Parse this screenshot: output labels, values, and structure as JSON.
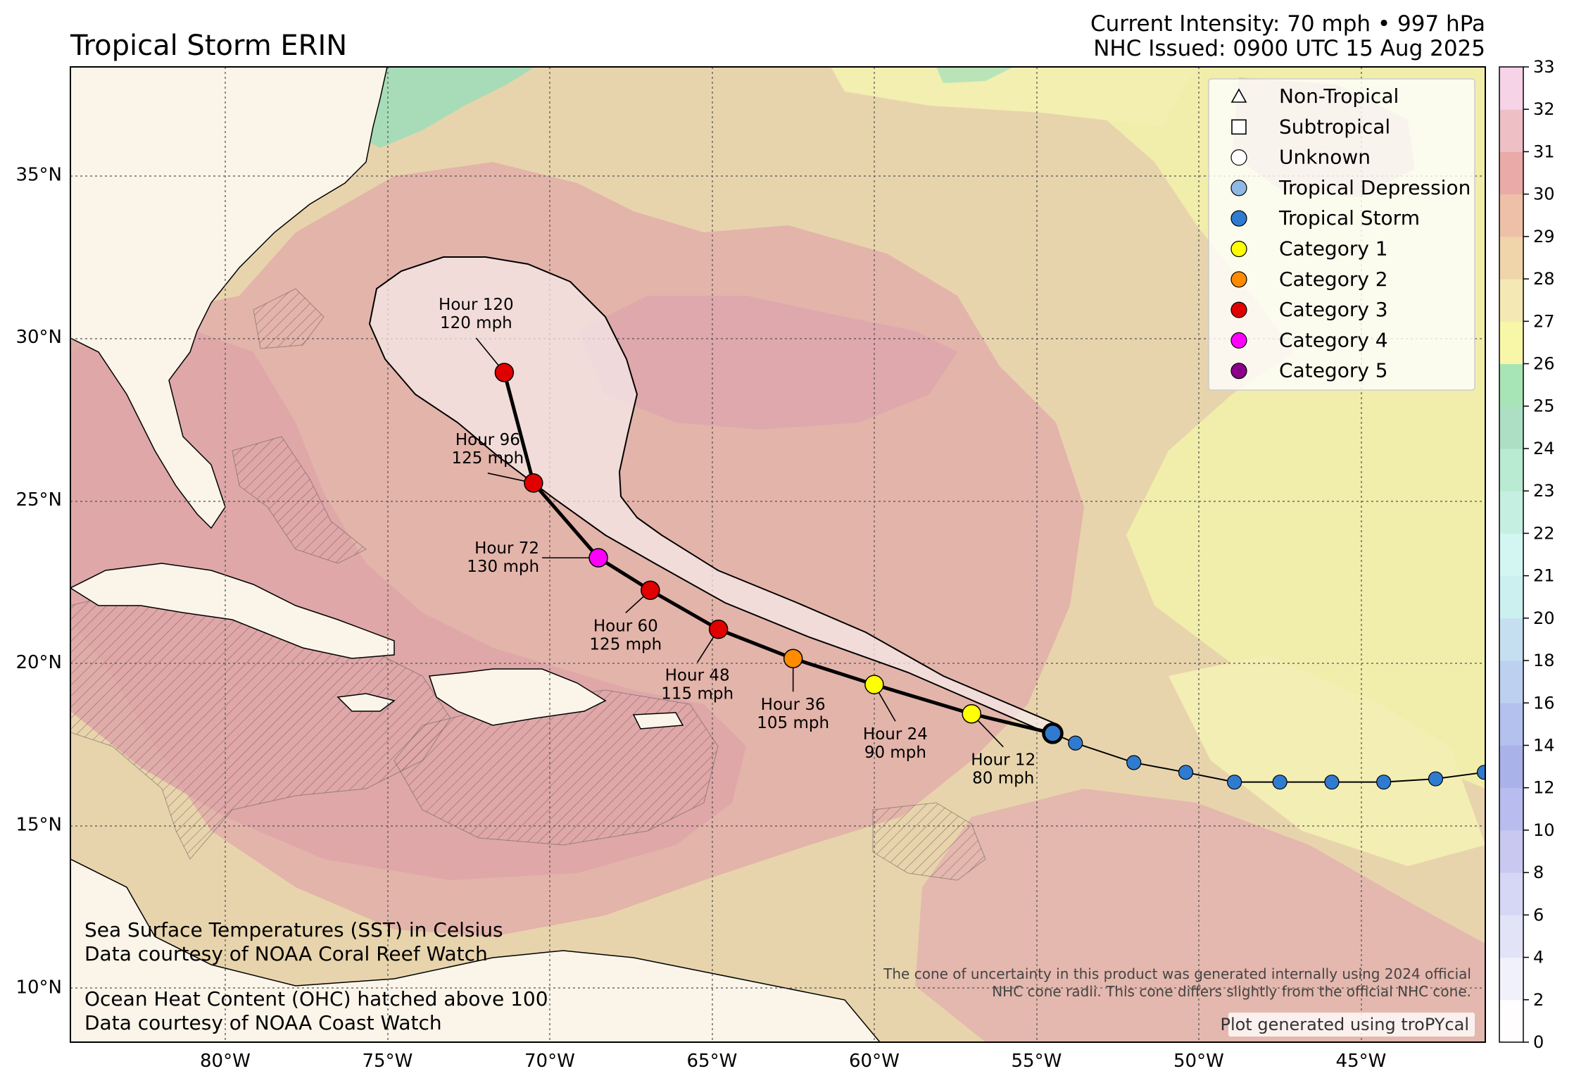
{
  "title": "Tropical Storm ERIN",
  "intensity": "Current Intensity: 70 mph • 997 hPa",
  "issued": "NHC Issued: 0900 UTC 15 Aug 2025",
  "lat_labels": [
    {
      "deg": 35,
      "text": "35°N"
    },
    {
      "deg": 30,
      "text": "30°N"
    },
    {
      "deg": 25,
      "text": "25°N"
    },
    {
      "deg": 20,
      "text": "20°N"
    },
    {
      "deg": 15,
      "text": "15°N"
    },
    {
      "deg": 10,
      "text": "10°N"
    }
  ],
  "lon_labels": [
    {
      "deg": -80,
      "text": "80°W"
    },
    {
      "deg": -75,
      "text": "75°W"
    },
    {
      "deg": -70,
      "text": "70°W"
    },
    {
      "deg": -65,
      "text": "65°W"
    },
    {
      "deg": -60,
      "text": "60°W"
    },
    {
      "deg": -55,
      "text": "55°W"
    },
    {
      "deg": -50,
      "text": "50°W"
    },
    {
      "deg": -45,
      "text": "45°W"
    }
  ],
  "colorbar": {
    "ticks": [
      "0",
      "2",
      "4",
      "6",
      "8",
      "10",
      "12",
      "14",
      "16",
      "18",
      "20",
      "21",
      "22",
      "23",
      "24",
      "25",
      "26",
      "27",
      "28",
      "29",
      "30",
      "31",
      "32",
      "33"
    ],
    "colors": [
      "#fffdfd",
      "#f1f1fb",
      "#e3e3f8",
      "#d6d6f5",
      "#c8c8f1",
      "#b8bcee",
      "#aab2ea",
      "#b4c0ee",
      "#bdd0f0",
      "#c6dff0",
      "#cceff0",
      "#d3f6f2",
      "#c5efe0",
      "#b9ead2",
      "#addfc4",
      "#a8e5b6",
      "#f8f7a8",
      "#f4e8b4",
      "#f0d5aa",
      "#eec0a8",
      "#e9aaa8",
      "#efbfc6",
      "#f7d3e8"
    ]
  },
  "legend": [
    {
      "symbol": "triangle",
      "color": "#ffffff",
      "label": "Non-Tropical"
    },
    {
      "symbol": "square",
      "color": "#ffffff",
      "label": "Subtropical"
    },
    {
      "symbol": "circle",
      "color": "#ffffff",
      "label": "Unknown"
    },
    {
      "symbol": "circle",
      "color": "#8fb9e4",
      "label": "Tropical Depression"
    },
    {
      "symbol": "circle",
      "color": "#2f7bd0",
      "label": "Tropical Storm"
    },
    {
      "symbol": "circle",
      "color": "#ffff00",
      "label": "Category 1"
    },
    {
      "symbol": "circle",
      "color": "#ff8c00",
      "label": "Category 2"
    },
    {
      "symbol": "circle",
      "color": "#e00000",
      "label": "Category 3"
    },
    {
      "symbol": "circle",
      "color": "#ff00ff",
      "label": "Category 4"
    },
    {
      "symbol": "circle",
      "color": "#8b008b",
      "label": "Category 5"
    }
  ],
  "past_track": [
    {
      "lon": -41.2,
      "lat": 16.6
    },
    {
      "lon": -42.7,
      "lat": 16.4
    },
    {
      "lon": -44.3,
      "lat": 16.3
    },
    {
      "lon": -45.9,
      "lat": 16.3
    },
    {
      "lon": -47.5,
      "lat": 16.3
    },
    {
      "lon": -48.9,
      "lat": 16.3
    },
    {
      "lon": -50.4,
      "lat": 16.6
    },
    {
      "lon": -52.0,
      "lat": 16.9
    },
    {
      "lon": -53.8,
      "lat": 17.5
    }
  ],
  "current_position": {
    "lon": -54.5,
    "lat": 17.8,
    "category": "Tropical Storm"
  },
  "forecast": [
    {
      "hour": "Hour 12",
      "wind": "80 mph",
      "lon": -57.0,
      "lat": 18.4,
      "category": "Category 1"
    },
    {
      "hour": "Hour 24",
      "wind": "90 mph",
      "lon": -60.0,
      "lat": 19.3,
      "category": "Category 1"
    },
    {
      "hour": "Hour 36",
      "wind": "105 mph",
      "lon": -62.5,
      "lat": 20.1,
      "category": "Category 2"
    },
    {
      "hour": "Hour 48",
      "wind": "115 mph",
      "lon": -64.8,
      "lat": 21.0,
      "category": "Category 3"
    },
    {
      "hour": "Hour 60",
      "wind": "125 mph",
      "lon": -66.9,
      "lat": 22.2,
      "category": "Category 3"
    },
    {
      "hour": "Hour 72",
      "wind": "130 mph",
      "lon": -68.5,
      "lat": 23.2,
      "category": "Category 4"
    },
    {
      "hour": "Hour 96",
      "wind": "125 mph",
      "lon": -70.5,
      "lat": 25.5,
      "category": "Category 3"
    },
    {
      "hour": "Hour 120",
      "wind": "120 mph",
      "lon": -71.4,
      "lat": 28.9,
      "category": "Category 3"
    }
  ],
  "notes": {
    "sst_line1": "Sea Surface Temperatures (SST) in Celsius",
    "sst_line2": "Data courtesy of NOAA Coral Reef Watch",
    "ohc_line1": "Ocean Heat Content (OHC) hatched above 100",
    "ohc_line2": "Data courtesy of NOAA Coast Watch",
    "cone_line1": "The cone of uncertainty in this product was generated internally using 2024 official",
    "cone_line2": "NHC cone radii. This cone differs slightly from the official NHC cone.",
    "credit": "Plot generated using troPYcal"
  }
}
